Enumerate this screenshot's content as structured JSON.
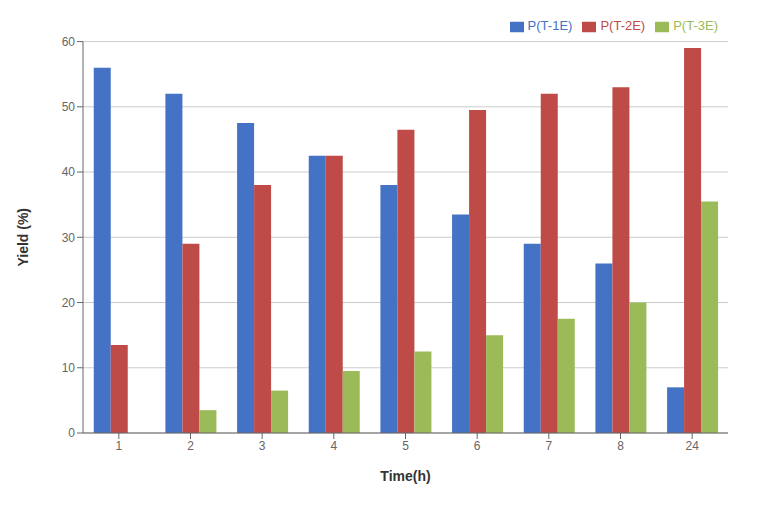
{
  "chart_data": {
    "type": "bar",
    "xlabel": "Time(h)",
    "ylabel": "Yield (%)",
    "categories": [
      "1",
      "2",
      "3",
      "4",
      "5",
      "6",
      "7",
      "8",
      "24"
    ],
    "series": [
      {
        "name": "P(T-1E)",
        "color": "#4472C4",
        "values": [
          56,
          52,
          47.5,
          42.5,
          38,
          33.5,
          29,
          26,
          7
        ]
      },
      {
        "name": "P(T-2E)",
        "color": "#BE4B48",
        "values": [
          13.5,
          29,
          38,
          42.5,
          46.5,
          49.5,
          52,
          53,
          59
        ]
      },
      {
        "name": "P(T-3E)",
        "color": "#9BBB59",
        "values": [
          0,
          3.5,
          6.5,
          9.5,
          12.5,
          15,
          17.5,
          20,
          35.5
        ]
      }
    ],
    "ylim": [
      0,
      60
    ],
    "yticks": [
      0,
      10,
      20,
      30,
      40,
      50,
      60
    ],
    "grid": true,
    "legend": "upper right"
  }
}
